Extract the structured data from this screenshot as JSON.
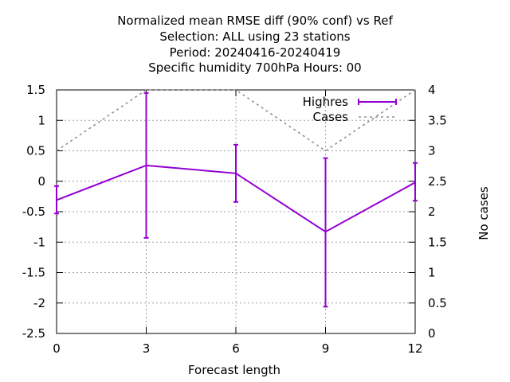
{
  "chart_data": {
    "type": "line",
    "title_lines": [
      "Normalized mean RMSE diff (90% conf) vs Ref",
      "Selection: ALL using    23 stations",
      "Period: 20240416-20240419",
      "Specific humidity 700hPa   Hours:  00"
    ],
    "xlabel": "Forecast length",
    "ylabel": "",
    "y2label": "No cases",
    "x": [
      0,
      3,
      6,
      9,
      12
    ],
    "xlim": [
      0,
      12
    ],
    "ylim": [
      -2.5,
      1.5
    ],
    "y2lim": [
      0,
      4
    ],
    "x_ticks": [
      "0",
      "3",
      "6",
      "9",
      "12"
    ],
    "y_ticks": [
      "1.5",
      "1",
      "0.5",
      "0",
      "-0.5",
      "-1",
      "-1.5",
      "-2",
      "-2.5"
    ],
    "y2_ticks": [
      "4",
      "3.5",
      "3",
      "2.5",
      "2",
      "1.5",
      "1",
      "0.5",
      "0"
    ],
    "grid": true,
    "legend_position": "top-right",
    "series": [
      {
        "name": "Highres",
        "axis": "y1",
        "color": "#9400d3",
        "style": "solid-errorbars",
        "values": [
          -0.31,
          0.26,
          0.13,
          -0.83,
          -0.02
        ],
        "err_low": [
          -0.53,
          -0.93,
          -0.34,
          -2.06,
          -0.32
        ],
        "err_high": [
          -0.08,
          1.45,
          0.6,
          0.38,
          0.3
        ]
      },
      {
        "name": "Cases",
        "axis": "y2",
        "color": "#909090",
        "style": "dashed",
        "values": [
          3,
          4,
          4,
          3,
          4
        ]
      }
    ]
  }
}
